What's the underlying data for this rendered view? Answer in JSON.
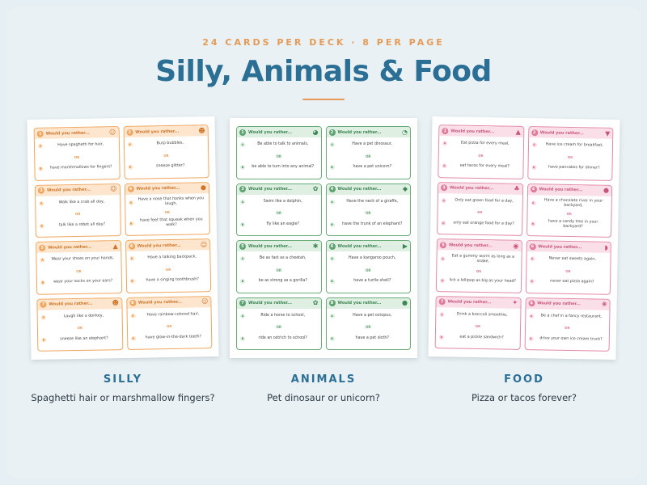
{
  "header": {
    "eyebrow": "24 CARDS PER DECK · 8 PER PAGE",
    "title": "Silly, Animals & Food"
  },
  "colors": {
    "title": "#2b6f95",
    "accent": "#e59a55",
    "silly": "#f0a65e",
    "animals": "#6aab7c",
    "food": "#e28aa5"
  },
  "card_heading": "Would you rather...",
  "or_text": "OR",
  "decks": [
    {
      "key": "silly",
      "label": "SILLY",
      "description": "Spaghetti hair or marshmallow fingers?",
      "cards": [
        {
          "num": "1",
          "icon": "silly-face-icon",
          "a": "Have spaghetti for hair,",
          "b": "have marshmallows for fingers?"
        },
        {
          "num": "2",
          "icon": "grin-face-icon",
          "a": "Burp bubbles,",
          "b": "sneeze glitter?"
        },
        {
          "num": "3",
          "icon": "laugh-face-icon",
          "a": "Walk like a crab all day,",
          "b": "talk like a robot all day?"
        },
        {
          "num": "4",
          "icon": "balloon-icon",
          "a": "Have a nose that honks when you laugh,",
          "b": "have feet that squeak when you walk?"
        },
        {
          "num": "5",
          "icon": "party-hat-icon",
          "a": "Wear your shoes on your hands,",
          "b": "wear your socks on your ears?"
        },
        {
          "num": "6",
          "icon": "smile-face-icon",
          "a": "Have a talking backpack,",
          "b": "have a singing toothbrush?"
        },
        {
          "num": "7",
          "icon": "happy-face-icon",
          "a": "Laugh like a donkey,",
          "b": "sneeze like an elephant?"
        },
        {
          "num": "8",
          "icon": "wink-face-icon",
          "a": "Have rainbow-colored hair,",
          "b": "have glow-in-the-dark teeth?"
        }
      ]
    },
    {
      "key": "animals",
      "label": "ANIMALS",
      "description": "Pet dinosaur or unicorn?",
      "cards": [
        {
          "num": "1",
          "icon": "cat-icon",
          "a": "Be able to talk to animals,",
          "b": "be able to turn into any animal?"
        },
        {
          "num": "2",
          "icon": "dog-icon",
          "a": "Have a pet dinosaur,",
          "b": "have a pet unicorn?"
        },
        {
          "num": "3",
          "icon": "butterfly-icon",
          "a": "Swim like a dolphin,",
          "b": "fly like an eagle?"
        },
        {
          "num": "4",
          "icon": "fish-icon",
          "a": "Have the neck of a giraffe,",
          "b": "have the trunk of an elephant?"
        },
        {
          "num": "5",
          "icon": "bee-icon",
          "a": "Be as fast as a cheetah,",
          "b": "be as strong as a gorilla?"
        },
        {
          "num": "6",
          "icon": "bird-icon",
          "a": "Have a kangaroo pouch,",
          "b": "have a turtle shell?"
        },
        {
          "num": "7",
          "icon": "butterfly-icon",
          "a": "Ride a horse to school,",
          "b": "ride an ostrich to school?"
        },
        {
          "num": "8",
          "icon": "ladybug-icon",
          "a": "Have a pet octopus,",
          "b": "have a pet sloth?"
        }
      ]
    },
    {
      "key": "food",
      "label": "FOOD",
      "description": "Pizza or tacos forever?",
      "cards": [
        {
          "num": "1",
          "icon": "pizza-icon",
          "a": "Eat pizza for every meal,",
          "b": "eat tacos for every meal?"
        },
        {
          "num": "2",
          "icon": "ice-cream-icon",
          "a": "Have ice cream for breakfast,",
          "b": "have pancakes for dinner?"
        },
        {
          "num": "3",
          "icon": "cupcake-icon",
          "a": "Only eat green food for a day,",
          "b": "only eat orange food for a day?"
        },
        {
          "num": "4",
          "icon": "cookie-icon",
          "a": "Have a chocolate river in your backyard,",
          "b": "have a candy tree in your backyard?"
        },
        {
          "num": "5",
          "icon": "lollipop-icon",
          "a": "Eat a gummy worm as long as a snake,",
          "b": "lick a lollipop as big as your head?"
        },
        {
          "num": "6",
          "icon": "watermelon-icon",
          "a": "Never eat sweets again,",
          "b": "never eat pizza again?"
        },
        {
          "num": "7",
          "icon": "candy-icon",
          "a": "Drink a broccoli smoothie,",
          "b": "eat a pickle sandwich?"
        },
        {
          "num": "8",
          "icon": "grapes-icon",
          "a": "Be a chef in a fancy restaurant,",
          "b": "drive your own ice cream truck?"
        }
      ]
    }
  ]
}
